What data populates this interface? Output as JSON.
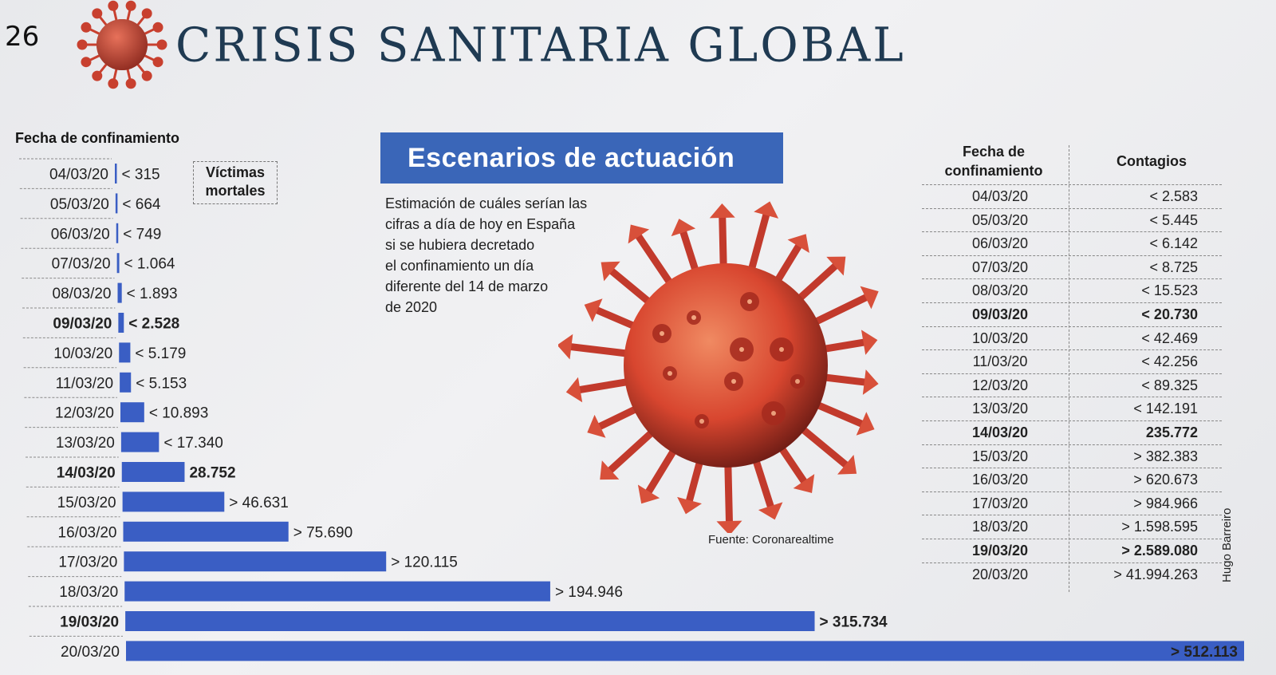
{
  "page_number": "26",
  "headline": "CRISIS SANITARIA GLOBAL",
  "left_header": "Fecha de confinamiento",
  "victims_label_1": "Víctimas",
  "victims_label_2": "mortales",
  "title": "Escenarios de actuación",
  "description_lines": [
    "Estimación de cuáles serían las",
    "cifras a día de hoy en España",
    "si se hubiera decretado",
    "el confinamiento un día",
    "diferente del 14 de marzo",
    "de 2020"
  ],
  "source": "Fuente: Coronarealtime",
  "author": "Hugo Barreiro",
  "colors": {
    "bar": "#3a5ec4",
    "title_box": "#3a66b8",
    "virus": "#d94a3a",
    "headline": "#1f3a52"
  },
  "chart_data": {
    "type": "bar",
    "orientation": "horizontal",
    "ylabel": "Fecha de confinamiento",
    "series_name": "Víctimas mortales",
    "categories": [
      "04/03/20",
      "05/03/20",
      "06/03/20",
      "07/03/20",
      "08/03/20",
      "09/03/20",
      "10/03/20",
      "11/03/20",
      "12/03/20",
      "13/03/20",
      "14/03/20",
      "15/03/20",
      "16/03/20",
      "17/03/20",
      "18/03/20",
      "19/03/20",
      "20/03/20"
    ],
    "values": [
      315,
      664,
      749,
      1064,
      1893,
      2528,
      5179,
      5153,
      10893,
      17340,
      28752,
      46631,
      75690,
      120115,
      194946,
      315734,
      512113
    ],
    "value_labels": [
      "< 315",
      "< 664",
      "< 749",
      "< 1.064",
      "< 1.893",
      "< 2.528",
      "< 5.179",
      "< 5.153",
      "< 10.893",
      "< 17.340",
      "28.752",
      "> 46.631",
      "> 75.690",
      "> 120.115",
      "> 194.946",
      "> 315.734",
      "> 512.113"
    ],
    "highlighted": [
      "09/03/20",
      "14/03/20",
      "19/03/20"
    ]
  },
  "table": {
    "header_date_1": "Fecha de",
    "header_date_2": "confinamiento",
    "header_contagios": "Contagios",
    "rows": [
      {
        "date": "04/03/20",
        "value": "< 2.583",
        "bold": false
      },
      {
        "date": "05/03/20",
        "value": "< 5.445",
        "bold": false
      },
      {
        "date": "06/03/20",
        "value": "< 6.142",
        "bold": false
      },
      {
        "date": "07/03/20",
        "value": "< 8.725",
        "bold": false
      },
      {
        "date": "08/03/20",
        "value": "< 15.523",
        "bold": false
      },
      {
        "date": "09/03/20",
        "value": "< 20.730",
        "bold": true
      },
      {
        "date": "10/03/20",
        "value": "< 42.469",
        "bold": false
      },
      {
        "date": "11/03/20",
        "value": "< 42.256",
        "bold": false
      },
      {
        "date": "12/03/20",
        "value": "< 89.325",
        "bold": false
      },
      {
        "date": "13/03/20",
        "value": "< 142.191",
        "bold": false
      },
      {
        "date": "14/03/20",
        "value": "235.772",
        "bold": true
      },
      {
        "date": "15/03/20",
        "value": "> 382.383",
        "bold": false
      },
      {
        "date": "16/03/20",
        "value": "> 620.673",
        "bold": false
      },
      {
        "date": "17/03/20",
        "value": "> 984.966",
        "bold": false
      },
      {
        "date": "18/03/20",
        "value": "> 1.598.595",
        "bold": false
      },
      {
        "date": "19/03/20",
        "value": "> 2.589.080",
        "bold": true
      },
      {
        "date": "20/03/20",
        "value": "> 41.994.263",
        "bold": false
      }
    ]
  }
}
